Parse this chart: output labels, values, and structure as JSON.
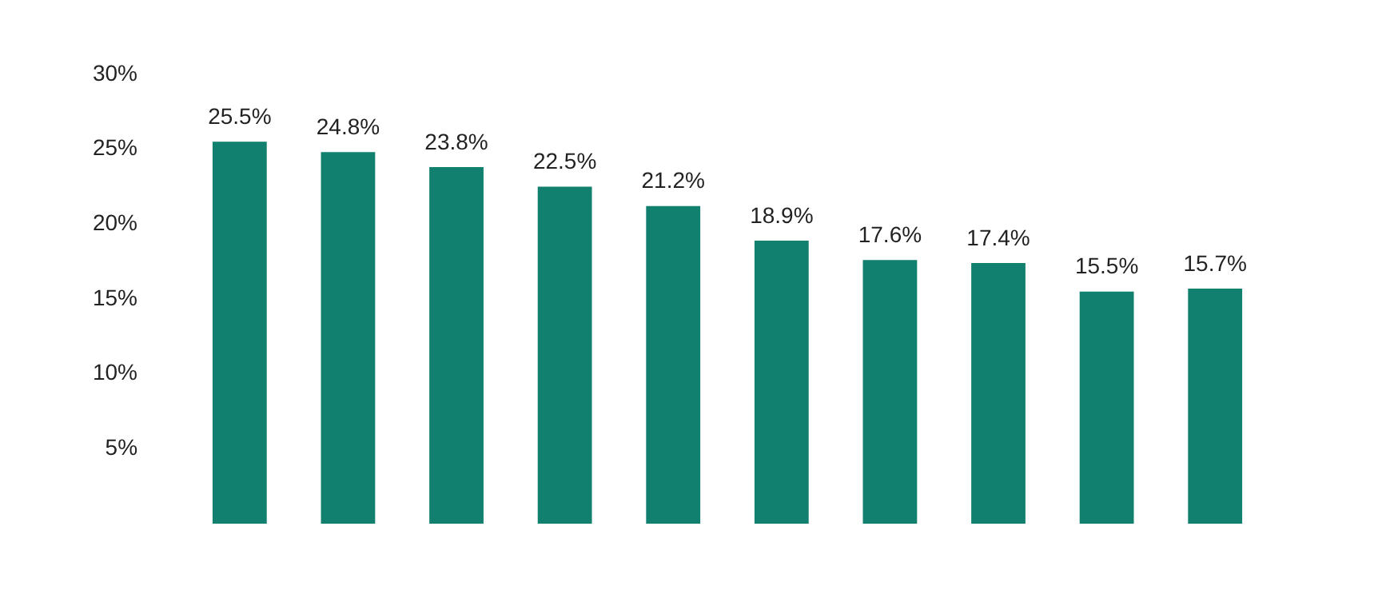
{
  "chart_data": {
    "type": "bar",
    "categories": [
      null,
      null,
      null,
      null,
      null,
      null,
      null,
      null,
      null,
      null
    ],
    "values": [
      25.5,
      24.8,
      23.8,
      22.5,
      21.2,
      18.9,
      17.6,
      17.4,
      15.5,
      15.7
    ],
    "value_labels": [
      "25.5%",
      "24.8%",
      "23.8%",
      "22.5%",
      "21.2%",
      "18.9%",
      "17.6%",
      "17.4%",
      "15.5%",
      "15.7%"
    ],
    "color": "#11806f",
    "ylim": [
      0,
      30
    ],
    "yticks": [
      {
        "value": 5,
        "label": "5%"
      },
      {
        "value": 10,
        "label": "10%"
      },
      {
        "value": 15,
        "label": "15%"
      },
      {
        "value": 20,
        "label": "20%"
      },
      {
        "value": 25,
        "label": "25%"
      },
      {
        "value": 30,
        "label": "30%"
      }
    ],
    "grid": false,
    "tick_labels": "y"
  }
}
